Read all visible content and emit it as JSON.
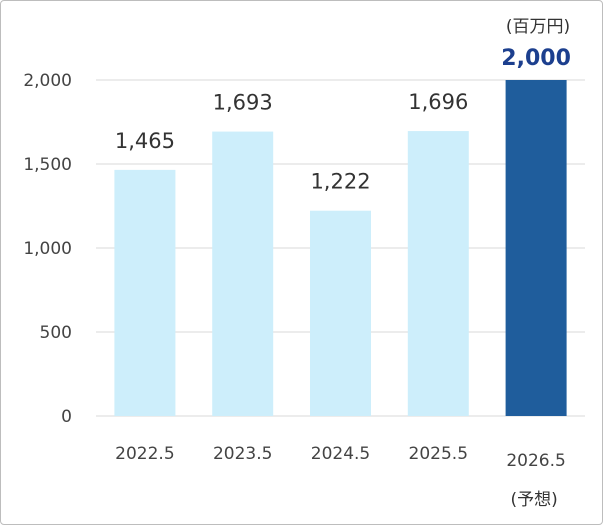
{
  "chart_data": {
    "type": "bar",
    "categories": [
      "2022.5",
      "2023.5",
      "2024.5",
      "2025.5",
      "2026.5"
    ],
    "values": [
      1465,
      1693,
      1222,
      1696,
      2000
    ],
    "data_labels": [
      "1,465",
      "1,693",
      "1,222",
      "1,696",
      "2,000"
    ],
    "category_notes": [
      "",
      "",
      "",
      "",
      "(予想)"
    ],
    "unit_label": "(百万円)",
    "ylim": [
      0,
      2000
    ],
    "yticks": [
      0,
      500,
      1000,
      1500,
      2000
    ],
    "ytick_labels": [
      "0",
      "500",
      "1,000",
      "1,500",
      "2,000"
    ],
    "highlight_index": 4,
    "grid": true,
    "colors": {
      "bar": "#cdeefb",
      "bar_highlight": "#1f5d9c",
      "highlight_label": "#1c3f8e",
      "grid": "#d9d9d9"
    }
  }
}
